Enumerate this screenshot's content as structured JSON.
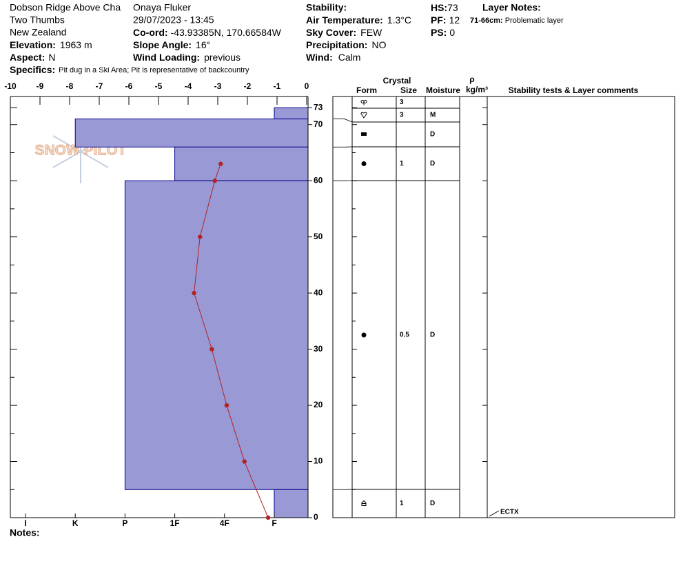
{
  "header": {
    "location": "Dobson Ridge Above Cha",
    "region": "Two Thumbs",
    "country": "New Zealand",
    "elevation": {
      "label": "Elevation:",
      "value": "1963 m"
    },
    "aspect": {
      "label": "Aspect:",
      "value": "N"
    },
    "specifics": {
      "label": "Specifics:",
      "value": "Pit dug in a Ski Area; Pit is representative of backcountry"
    },
    "observer": "Onaya Fluker",
    "datetime": "29/07/2023 - 13:45",
    "coord": {
      "label": "Co-ord:",
      "value": "-43.93385N, 170.66584W"
    },
    "slope": {
      "label": "Slope Angle:",
      "value": "16°"
    },
    "wind_loading": {
      "label": "Wind Loading:",
      "value": "previous"
    },
    "stability": {
      "label": "Stability:"
    },
    "air_temp": {
      "label": "Air Temperature:",
      "value": "1.3°C"
    },
    "sky": {
      "label": "Sky Cover:",
      "value": "FEW"
    },
    "precip": {
      "label": "Precipitation:",
      "value": "NO"
    },
    "wind": {
      "label": "Wind:",
      "value": "Calm"
    },
    "hs": {
      "label": "HS:",
      "value": 73
    },
    "pf": {
      "label": "PF:",
      "value": 12
    },
    "ps": {
      "label": "PS:",
      "value": 0
    },
    "layer_notes": {
      "label": "Layer Notes:",
      "range": "71-66cm:",
      "note": "Problematic layer"
    }
  },
  "watermark": "SNOW PILOT",
  "chart_data": {
    "type": "snow_profile",
    "xlim": [
      -10,
      0
    ],
    "xticks": [
      -10,
      -9,
      -8,
      -7,
      -6,
      -5,
      -4,
      -3,
      -2,
      -1,
      0
    ],
    "ylim": [
      0,
      75
    ],
    "yticks": [
      0,
      10,
      20,
      30,
      40,
      50,
      60,
      70,
      73
    ],
    "yminorticks": [
      5,
      15,
      25,
      35,
      45,
      55,
      65
    ],
    "hardness_scale": [
      "I",
      "K",
      "P",
      "1F",
      "4F",
      "F"
    ],
    "hardness_color": "#9999d6",
    "hardness_layers": [
      {
        "top": 73,
        "bottom": 71,
        "hardness": "F"
      },
      {
        "top": 71,
        "bottom": 66,
        "hardness": "K"
      },
      {
        "top": 66,
        "bottom": 60,
        "hardness": "1F"
      },
      {
        "top": 60,
        "bottom": 5,
        "hardness": "P"
      },
      {
        "top": 5,
        "bottom": 0,
        "hardness": "F"
      }
    ],
    "temperature": {
      "color": "#b22222",
      "heights": [
        63,
        60,
        50,
        40,
        30,
        20,
        10,
        0
      ],
      "values": [
        -2.9,
        -3.1,
        -3.6,
        -3.8,
        -3.2,
        -2.7,
        -2.1,
        -1.3
      ]
    }
  },
  "table": {
    "crystal": "Crystal",
    "form": "Form",
    "size": "Size",
    "moisture": "Moisture",
    "rho": "ρ",
    "density_unit": "kg/m³",
    "comments": "Stability tests & Layer comments",
    "rows": [
      {
        "size": 3
      },
      {
        "size": 3,
        "moisture": "M"
      },
      {
        "moisture": "D"
      },
      {
        "size": 1,
        "moisture": "D"
      },
      {
        "size": 0.5,
        "moisture": "D"
      },
      {
        "size": 1,
        "moisture": "D"
      }
    ],
    "test": "ECTX"
  },
  "notes": "Notes:"
}
